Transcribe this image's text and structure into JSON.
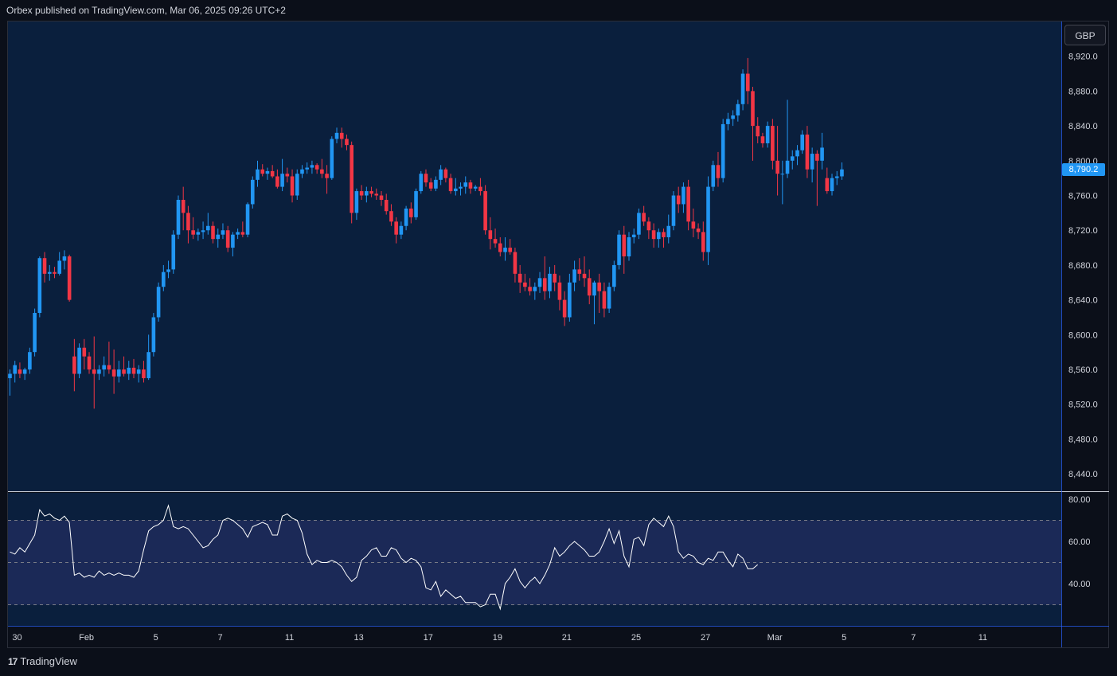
{
  "header": {
    "text": "Orbex published on TradingView.com, Mar 06, 2025 09:26 UTC+2"
  },
  "currency_button": {
    "label": "GBP"
  },
  "footer": {
    "logo_mark": "17",
    "logo_text": "TradingView"
  },
  "colors": {
    "up": "#2196f3",
    "down": "#f23645",
    "rsi_line": "#ffffff",
    "rsi_band": "#1d2a5a",
    "background": "#0a1f3d"
  },
  "chart_data": [
    {
      "type": "candlestick",
      "symbol_currency": "GBP",
      "last_price": "8,790.2",
      "ylim": [
        8420,
        8960
      ],
      "y_ticks": [
        {
          "value": 8920,
          "label": "8,920.0"
        },
        {
          "value": 8880,
          "label": "8,880.0"
        },
        {
          "value": 8840,
          "label": "8,840.0"
        },
        {
          "value": 8800,
          "label": "8,800.0"
        },
        {
          "value": 8760,
          "label": "8,760.0"
        },
        {
          "value": 8720,
          "label": "8,720.0"
        },
        {
          "value": 8680,
          "label": "8,680.0"
        },
        {
          "value": 8640,
          "label": "8,640.0"
        },
        {
          "value": 8600,
          "label": "8,600.0"
        },
        {
          "value": 8560,
          "label": "8,560.0"
        },
        {
          "value": 8520,
          "label": "8,520.0"
        },
        {
          "value": 8480,
          "label": "8,480.0"
        },
        {
          "value": 8440,
          "label": "8,440.0"
        }
      ],
      "x_ticks": [
        {
          "index": 0,
          "label": "30"
        },
        {
          "index": 14,
          "label": "Feb"
        },
        {
          "index": 28,
          "label": "5"
        },
        {
          "index": 41,
          "label": "7"
        },
        {
          "index": 55,
          "label": "11"
        },
        {
          "index": 69,
          "label": "13"
        },
        {
          "index": 83,
          "label": "17"
        },
        {
          "index": 97,
          "label": "19"
        },
        {
          "index": 111,
          "label": "21"
        },
        {
          "index": 125,
          "label": "25"
        },
        {
          "index": 139,
          "label": "27"
        },
        {
          "index": 153,
          "label": "Mar"
        },
        {
          "index": 167,
          "label": "5"
        },
        {
          "index": 181,
          "label": "7"
        },
        {
          "index": 195,
          "label": "11"
        }
      ],
      "candles": [
        [
          8550,
          8560,
          8530,
          8555
        ],
        [
          8555,
          8570,
          8545,
          8565
        ],
        [
          8560,
          8568,
          8550,
          8555
        ],
        [
          8555,
          8562,
          8548,
          8560
        ],
        [
          8560,
          8585,
          8555,
          8580
        ],
        [
          8580,
          8630,
          8575,
          8625
        ],
        [
          8625,
          8690,
          8620,
          8688
        ],
        [
          8688,
          8695,
          8660,
          8670
        ],
        [
          8670,
          8680,
          8662,
          8672
        ],
        [
          8672,
          8678,
          8665,
          8670
        ],
        [
          8670,
          8695,
          8668,
          8685
        ],
        [
          8685,
          8697,
          8675,
          8690
        ],
        [
          8690,
          8692,
          8638,
          8640
        ],
        [
          8575,
          8595,
          8535,
          8555
        ],
        [
          8555,
          8590,
          8550,
          8585
        ],
        [
          8585,
          8595,
          8560,
          8575
        ],
        [
          8575,
          8580,
          8555,
          8560
        ],
        [
          8560,
          8598,
          8515,
          8555
        ],
        [
          8555,
          8565,
          8548,
          8560
        ],
        [
          8560,
          8575,
          8552,
          8565
        ],
        [
          8565,
          8592,
          8555,
          8560
        ],
        [
          8560,
          8583,
          8532,
          8552
        ],
        [
          8552,
          8570,
          8545,
          8560
        ],
        [
          8560,
          8575,
          8552,
          8555
        ],
        [
          8555,
          8570,
          8548,
          8562
        ],
        [
          8562,
          8572,
          8550,
          8555
        ],
        [
          8555,
          8565,
          8545,
          8560
        ],
        [
          8560,
          8570,
          8545,
          8550
        ],
        [
          8550,
          8600,
          8548,
          8580
        ],
        [
          8580,
          8625,
          8575,
          8620
        ],
        [
          8620,
          8660,
          8615,
          8655
        ],
        [
          8655,
          8680,
          8650,
          8672
        ],
        [
          8672,
          8685,
          8665,
          8675
        ],
        [
          8675,
          8720,
          8670,
          8715
        ],
        [
          8715,
          8760,
          8710,
          8755
        ],
        [
          8755,
          8770,
          8720,
          8740
        ],
        [
          8740,
          8748,
          8705,
          8720
        ],
        [
          8720,
          8735,
          8710,
          8715
        ],
        [
          8715,
          8722,
          8708,
          8718
        ],
        [
          8718,
          8730,
          8710,
          8720
        ],
        [
          8720,
          8740,
          8715,
          8725
        ],
        [
          8725,
          8730,
          8705,
          8710
        ],
        [
          8710,
          8722,
          8700,
          8715
        ],
        [
          8715,
          8728,
          8710,
          8720
        ],
        [
          8720,
          8725,
          8695,
          8700
        ],
        [
          8700,
          8718,
          8690,
          8715
        ],
        [
          8715,
          8722,
          8710,
          8718
        ],
        [
          8718,
          8730,
          8712,
          8715
        ],
        [
          8715,
          8752,
          8712,
          8750
        ],
        [
          8750,
          8782,
          8745,
          8778
        ],
        [
          8778,
          8800,
          8770,
          8790
        ],
        [
          8790,
          8796,
          8782,
          8785
        ],
        [
          8785,
          8792,
          8778,
          8788
        ],
        [
          8788,
          8795,
          8780,
          8782
        ],
        [
          8782,
          8790,
          8768,
          8770
        ],
        [
          8770,
          8802,
          8765,
          8785
        ],
        [
          8785,
          8792,
          8775,
          8782
        ],
        [
          8782,
          8790,
          8752,
          8760
        ],
        [
          8760,
          8790,
          8755,
          8785
        ],
        [
          8785,
          8795,
          8780,
          8790
        ],
        [
          8790,
          8798,
          8785,
          8792
        ],
        [
          8792,
          8800,
          8785,
          8795
        ],
        [
          8795,
          8797,
          8785,
          8790
        ],
        [
          8790,
          8802,
          8780,
          8785
        ],
        [
          8785,
          8795,
          8762,
          8780
        ],
        [
          8780,
          8828,
          8778,
          8825
        ],
        [
          8825,
          8838,
          8820,
          8832
        ],
        [
          8832,
          8838,
          8815,
          8825
        ],
        [
          8825,
          8830,
          8812,
          8818
        ],
        [
          8818,
          8822,
          8728,
          8740
        ],
        [
          8740,
          8768,
          8732,
          8765
        ],
        [
          8765,
          8772,
          8755,
          8760
        ],
        [
          8760,
          8770,
          8752,
          8765
        ],
        [
          8765,
          8770,
          8758,
          8762
        ],
        [
          8762,
          8768,
          8755,
          8760
        ],
        [
          8760,
          8765,
          8748,
          8755
        ],
        [
          8755,
          8762,
          8738,
          8742
        ],
        [
          8742,
          8750,
          8725,
          8730
        ],
        [
          8730,
          8735,
          8705,
          8715
        ],
        [
          8715,
          8730,
          8710,
          8725
        ],
        [
          8725,
          8748,
          8720,
          8745
        ],
        [
          8745,
          8752,
          8728,
          8735
        ],
        [
          8735,
          8768,
          8732,
          8765
        ],
        [
          8765,
          8788,
          8762,
          8785
        ],
        [
          8785,
          8790,
          8770,
          8775
        ],
        [
          8775,
          8780,
          8765,
          8768
        ],
        [
          8768,
          8782,
          8765,
          8778
        ],
        [
          8778,
          8795,
          8772,
          8790
        ],
        [
          8790,
          8792,
          8775,
          8780
        ],
        [
          8780,
          8785,
          8762,
          8765
        ],
        [
          8765,
          8780,
          8760,
          8768
        ],
        [
          8768,
          8775,
          8760,
          8770
        ],
        [
          8770,
          8782,
          8762,
          8775
        ],
        [
          8775,
          8778,
          8762,
          8768
        ],
        [
          8768,
          8772,
          8765,
          8770
        ],
        [
          8770,
          8780,
          8760,
          8765
        ],
        [
          8765,
          8772,
          8715,
          8720
        ],
        [
          8720,
          8735,
          8698,
          8710
        ],
        [
          8710,
          8722,
          8700,
          8705
        ],
        [
          8705,
          8712,
          8690,
          8695
        ],
        [
          8695,
          8712,
          8685,
          8700
        ],
        [
          8700,
          8710,
          8692,
          8695
        ],
        [
          8695,
          8700,
          8660,
          8670
        ],
        [
          8670,
          8680,
          8648,
          8660
        ],
        [
          8660,
          8670,
          8650,
          8655
        ],
        [
          8655,
          8665,
          8645,
          8650
        ],
        [
          8650,
          8660,
          8640,
          8655
        ],
        [
          8655,
          8672,
          8648,
          8665
        ],
        [
          8665,
          8690,
          8640,
          8650
        ],
        [
          8650,
          8678,
          8642,
          8670
        ],
        [
          8670,
          8680,
          8650,
          8660
        ],
        [
          8660,
          8668,
          8628,
          8640
        ],
        [
          8640,
          8650,
          8610,
          8620
        ],
        [
          8620,
          8670,
          8615,
          8660
        ],
        [
          8660,
          8685,
          8650,
          8675
        ],
        [
          8675,
          8688,
          8662,
          8670
        ],
        [
          8670,
          8690,
          8655,
          8665
        ],
        [
          8665,
          8675,
          8635,
          8645
        ],
        [
          8645,
          8662,
          8612,
          8660
        ],
        [
          8660,
          8670,
          8625,
          8650
        ],
        [
          8650,
          8660,
          8620,
          8630
        ],
        [
          8630,
          8660,
          8625,
          8655
        ],
        [
          8655,
          8685,
          8650,
          8680
        ],
        [
          8680,
          8720,
          8675,
          8715
        ],
        [
          8715,
          8725,
          8670,
          8690
        ],
        [
          8690,
          8718,
          8685,
          8712
        ],
        [
          8712,
          8722,
          8705,
          8715
        ],
        [
          8715,
          8745,
          8710,
          8740
        ],
        [
          8740,
          8748,
          8725,
          8730
        ],
        [
          8730,
          8735,
          8710,
          8720
        ],
        [
          8720,
          8728,
          8700,
          8710
        ],
        [
          8710,
          8722,
          8700,
          8718
        ],
        [
          8718,
          8722,
          8700,
          8712
        ],
        [
          8712,
          8738,
          8705,
          8725
        ],
        [
          8725,
          8765,
          8720,
          8760
        ],
        [
          8760,
          8770,
          8740,
          8750
        ],
        [
          8750,
          8775,
          8740,
          8770
        ],
        [
          8770,
          8778,
          8720,
          8730
        ],
        [
          8730,
          8745,
          8712,
          8722
        ],
        [
          8722,
          8728,
          8710,
          8718
        ],
        [
          8718,
          8730,
          8685,
          8695
        ],
        [
          8695,
          8782,
          8680,
          8770
        ],
        [
          8770,
          8800,
          8765,
          8795
        ],
        [
          8795,
          8810,
          8770,
          8780
        ],
        [
          8780,
          8848,
          8775,
          8842
        ],
        [
          8842,
          8855,
          8835,
          8848
        ],
        [
          8848,
          8858,
          8840,
          8852
        ],
        [
          8852,
          8870,
          8845,
          8865
        ],
        [
          8865,
          8905,
          8858,
          8900
        ],
        [
          8900,
          8918,
          8865,
          8880
        ],
        [
          8880,
          8885,
          8800,
          8840
        ],
        [
          8840,
          8850,
          8820,
          8828
        ],
        [
          8828,
          8832,
          8815,
          8820
        ],
        [
          8820,
          8845,
          8815,
          8840
        ],
        [
          8840,
          8848,
          8790,
          8800
        ],
        [
          8800,
          8840,
          8760,
          8785
        ],
        [
          8785,
          8800,
          8750,
          8785
        ],
        [
          8785,
          8870,
          8780,
          8800
        ],
        [
          8800,
          8812,
          8790,
          8805
        ],
        [
          8805,
          8818,
          8795,
          8812
        ],
        [
          8812,
          8835,
          8808,
          8830
        ],
        [
          8830,
          8840,
          8780,
          8790
        ],
        [
          8790,
          8815,
          8775,
          8808
        ],
        [
          8808,
          8812,
          8748,
          8800
        ],
        [
          8800,
          8832,
          8790,
          8815
        ],
        [
          8780,
          8792,
          8762,
          8765
        ],
        [
          8765,
          8785,
          8760,
          8780
        ],
        [
          8780,
          8788,
          8772,
          8782
        ],
        [
          8782,
          8798,
          8778,
          8790
        ]
      ]
    },
    {
      "type": "line",
      "name": "RSI",
      "ylim": [
        20,
        83
      ],
      "y_ticks": [
        {
          "value": 80,
          "label": "80.00"
        },
        {
          "value": 60,
          "label": "60.00"
        },
        {
          "value": 40,
          "label": "40.00"
        }
      ],
      "band": [
        30,
        70
      ],
      "midline": 50,
      "values": [
        55,
        54,
        57,
        55,
        59,
        63,
        75,
        72,
        73,
        71,
        70,
        72,
        69,
        44,
        45,
        43,
        44,
        43,
        46,
        44,
        45,
        44,
        45,
        44,
        44,
        43,
        46,
        56,
        65,
        67,
        68,
        70,
        77,
        67,
        66,
        67,
        66,
        63,
        60,
        57,
        58,
        61,
        63,
        70,
        71,
        70,
        68,
        66,
        62,
        67,
        68,
        69,
        68,
        63,
        63,
        72,
        73,
        71,
        70,
        64,
        54,
        49,
        51,
        50,
        50,
        51,
        50,
        48,
        44,
        41,
        43,
        51,
        53,
        56,
        57,
        53,
        53,
        57,
        56,
        52,
        50,
        52,
        51,
        48,
        38,
        37,
        41,
        34,
        37,
        35,
        33,
        34,
        31,
        31,
        31,
        29,
        30,
        35,
        35,
        28,
        40,
        43,
        47,
        41,
        38,
        41,
        43,
        40,
        44,
        49,
        57,
        53,
        55,
        58,
        60,
        58,
        56,
        53,
        53,
        55,
        60,
        66,
        59,
        65,
        53,
        48,
        61,
        62,
        58,
        68,
        71,
        69,
        67,
        72,
        67,
        55,
        52,
        54,
        53,
        50,
        49,
        52,
        51,
        55,
        55,
        51,
        48,
        54,
        52,
        47,
        47,
        49
      ]
    }
  ]
}
